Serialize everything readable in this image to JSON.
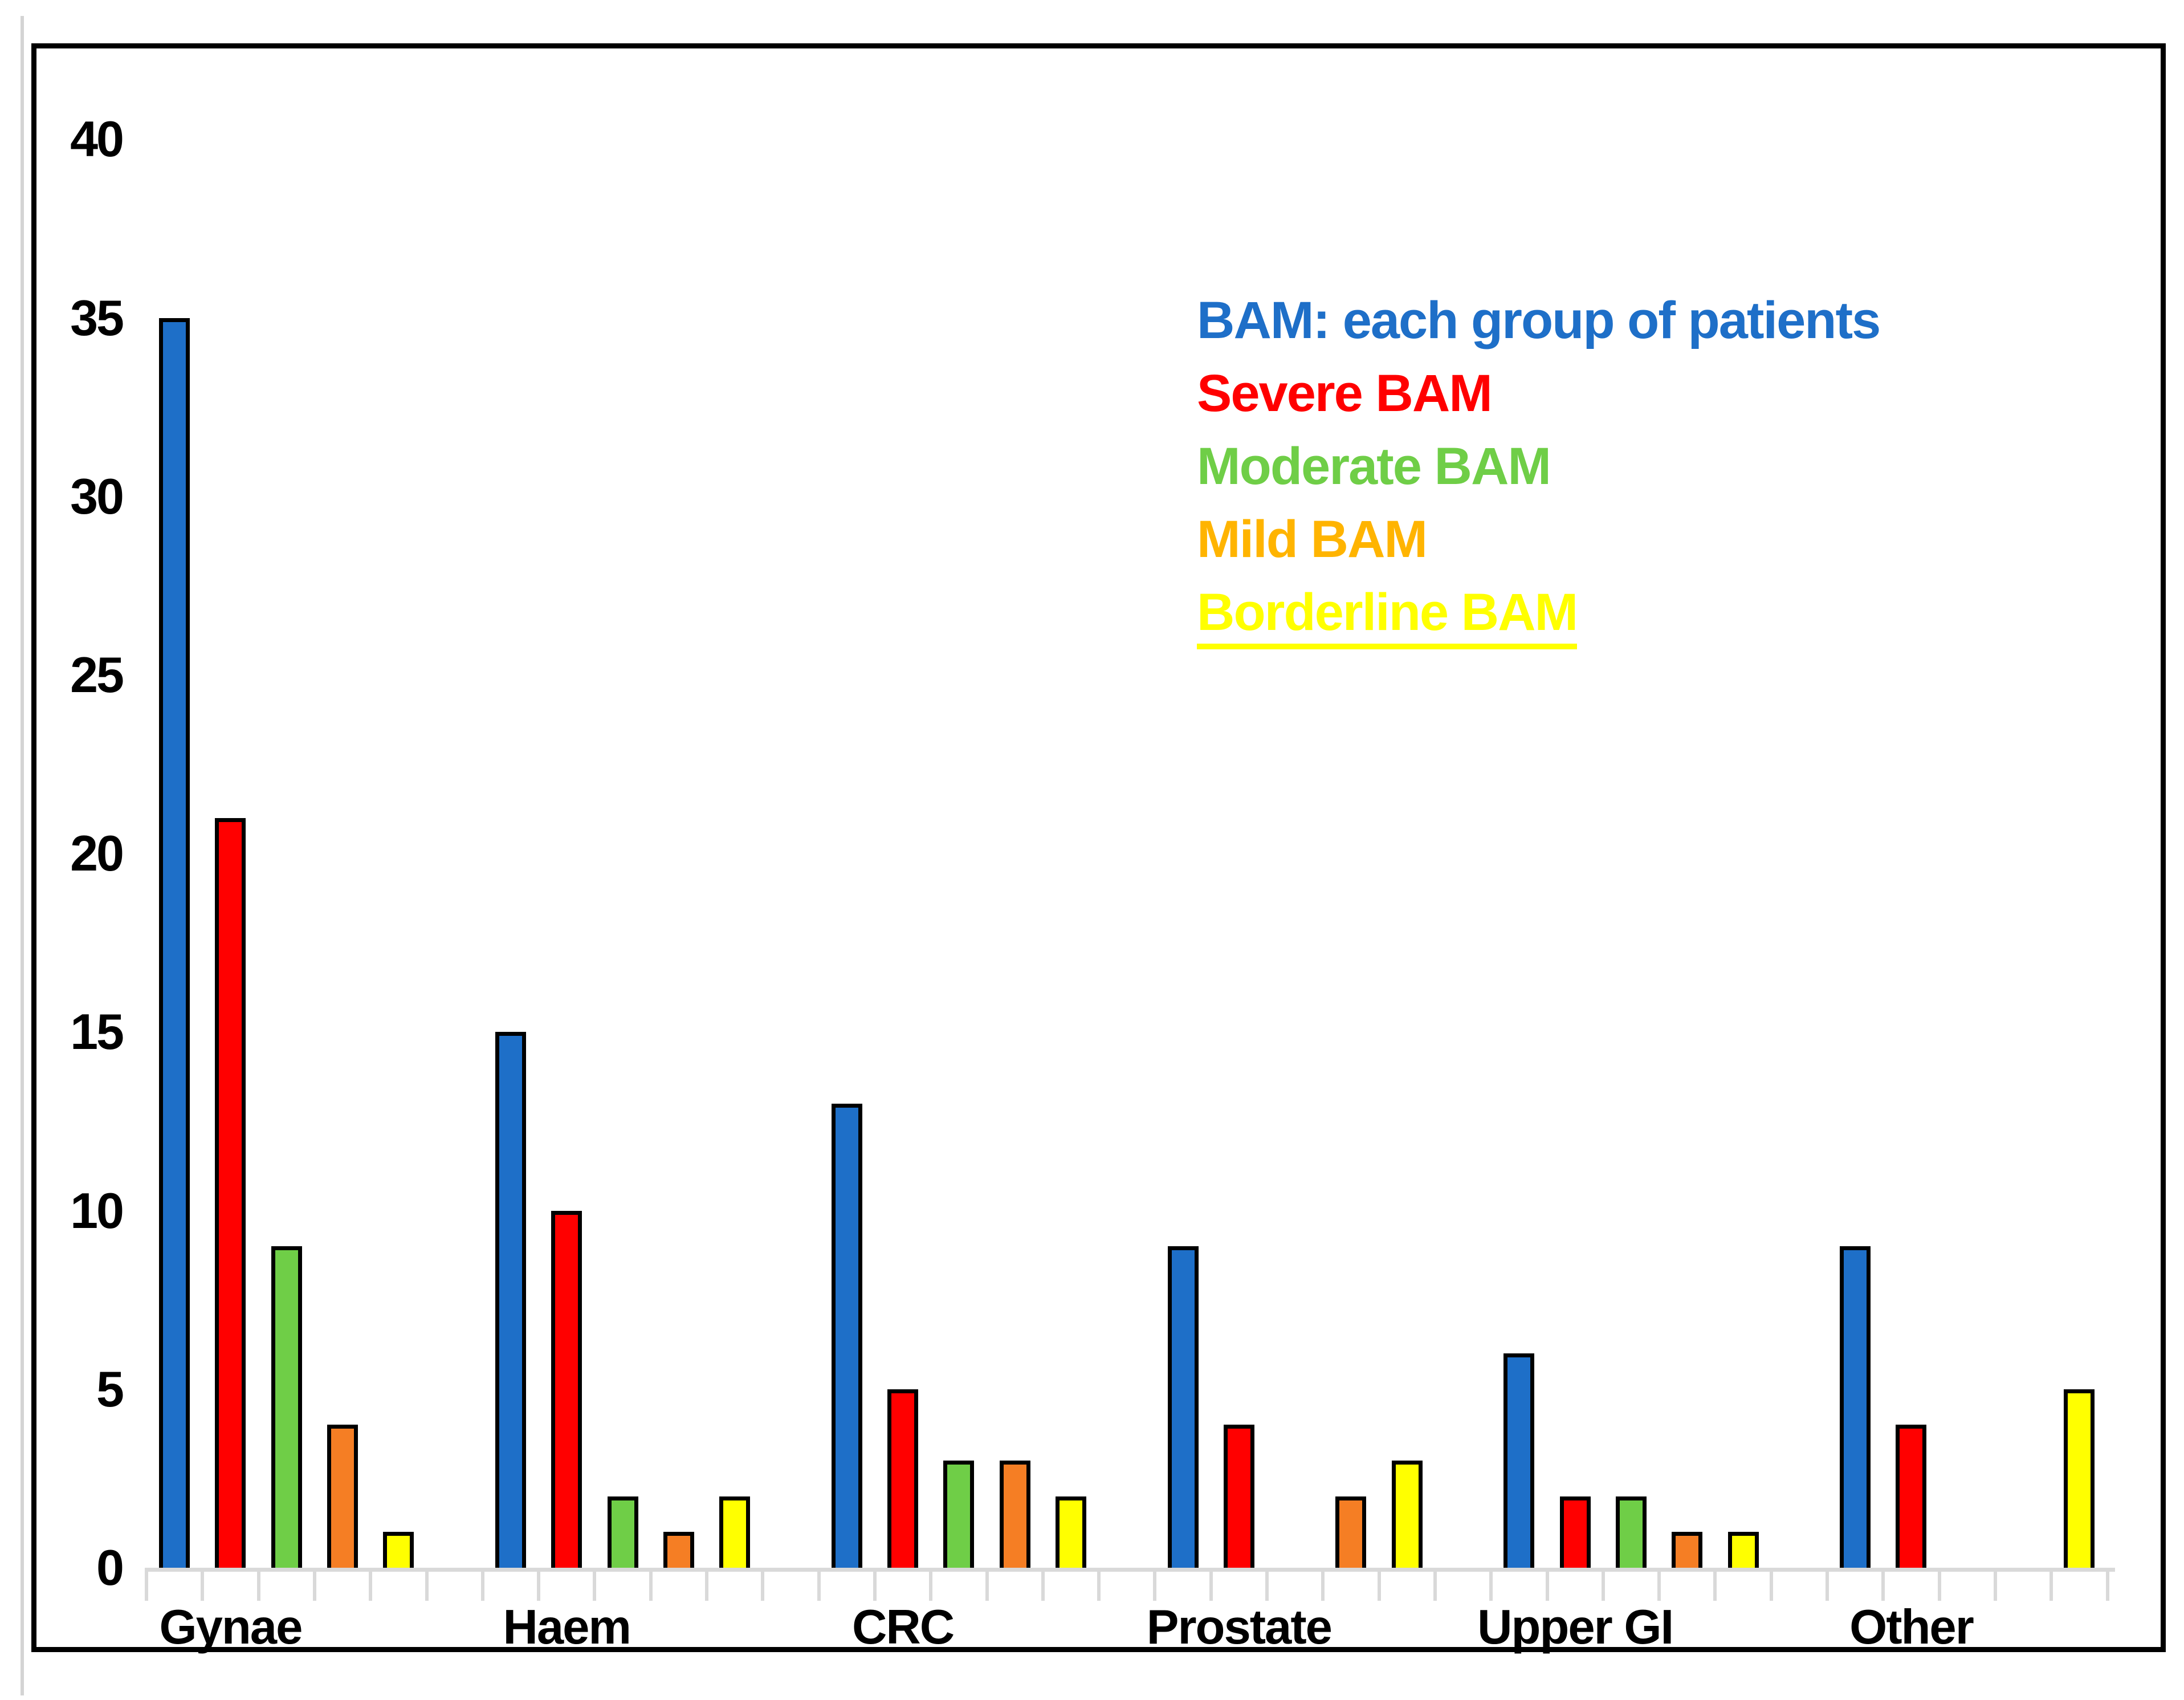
{
  "figure": {
    "background": "#FFFFFF",
    "frame_color": "#000000",
    "axis_color": "#D9D9D9"
  },
  "chart_data": {
    "type": "bar",
    "title": "",
    "xlabel": "",
    "ylabel": "",
    "categories": [
      "Gynae",
      "Haem",
      "CRC",
      "Prostate",
      "Upper GI",
      "Other"
    ],
    "series": [
      {
        "name": "BAM: each group of patients",
        "color": "#1E6FC8",
        "values": [
          35,
          15,
          13,
          9,
          6,
          9
        ]
      },
      {
        "name": "Severe BAM",
        "color": "#FF0000",
        "values": [
          21,
          10,
          5,
          4,
          2,
          4
        ]
      },
      {
        "name": "Moderate BAM",
        "color": "#6FCE47",
        "values": [
          9,
          2,
          3,
          0,
          2,
          0
        ]
      },
      {
        "name": "Mild BAM",
        "color": "#F57E24",
        "values": [
          4,
          1,
          3,
          2,
          1,
          0
        ]
      },
      {
        "name": "Borderline BAM",
        "color": "#FFFF00",
        "values": [
          1,
          2,
          2,
          3,
          1,
          5
        ]
      }
    ],
    "ylim": [
      0,
      40
    ],
    "yticks": [
      0,
      5,
      10,
      15,
      20,
      25,
      30,
      35,
      40
    ],
    "grid": false,
    "legend_position": "top-right",
    "bar_outline_color": "#000000"
  },
  "legend": {
    "entries": [
      {
        "label": "BAM: each group of patients",
        "color": "#1E6FC8",
        "underline": false
      },
      {
        "label": "Severe BAM",
        "color": "#FF0000",
        "underline": false
      },
      {
        "label": "Moderate BAM",
        "color": "#6FCE47",
        "underline": false
      },
      {
        "label": "Mild BAM",
        "color": "#FFB400",
        "underline": false
      },
      {
        "label": "Borderline BAM",
        "color": "#FFFF00",
        "underline": true
      }
    ]
  },
  "axes": {
    "y_tick_labels": [
      "40",
      "35",
      "30",
      "25",
      "20",
      "15",
      "10",
      "5",
      "0"
    ],
    "x_tick_labels": [
      "Gynae",
      "Haem",
      "CRC",
      "Prostate",
      "Upper GI",
      "Other"
    ]
  }
}
